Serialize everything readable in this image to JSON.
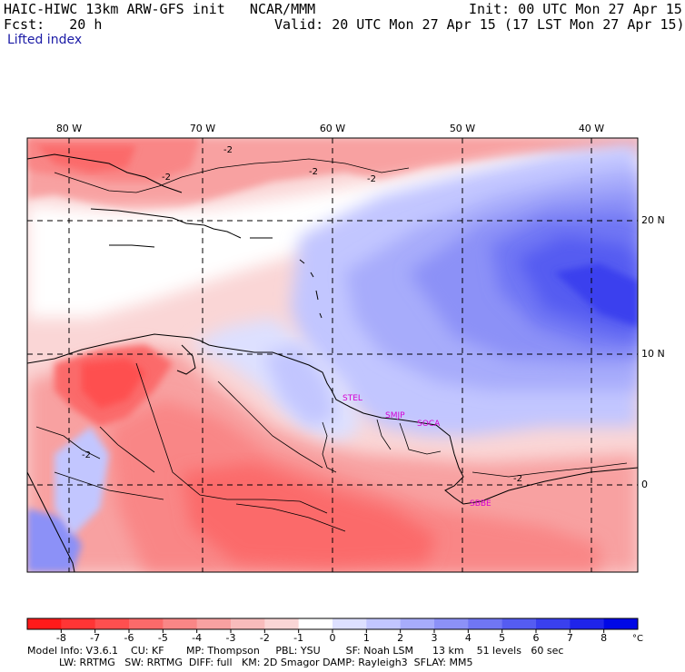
{
  "header": {
    "title_left": "HAIC-HIWC 13km ARW-GFS init   NCAR/MMM",
    "init": "Init: 00 UTC Mon 27 Apr 15",
    "fcst": "Fcst:   20 h",
    "valid": "Valid: 20 UTC Mon 27 Apr 15 (17 LST Mon 27 Apr 15)",
    "field": "Lifted index"
  },
  "map": {
    "lon_labels": [
      "80 W",
      "70 W",
      "60 W",
      "50 W",
      "40 W"
    ],
    "lat_labels": [
      "20 N",
      "10 N",
      "0"
    ],
    "contour_label": "-2",
    "stations": [
      "STEL",
      "SMJP",
      "SOCA",
      "SBBE"
    ]
  },
  "colorbar": {
    "ticks": [
      "-8",
      "-7",
      "-6",
      "-5",
      "-4",
      "-3",
      "-2",
      "-1",
      "0",
      "1",
      "2",
      "3",
      "4",
      "5",
      "6",
      "7",
      "8"
    ],
    "unit": "°C",
    "colors": [
      "#ff1a1a",
      "#ff3535",
      "#fe4f4f",
      "#fb6a6a",
      "#f98686",
      "#f8a1a1",
      "#f8bcbc",
      "#fad6d6",
      "#ffffff",
      "#dde0ff",
      "#c2c6ff",
      "#a7acfb",
      "#8c91f7",
      "#7076f4",
      "#555cf1",
      "#3a40ee",
      "#1f24ea",
      "#0008e6"
    ]
  },
  "footer": {
    "line1": "Model Info: V3.6.1    CU: KF       MP: Thompson     PBL: YSU        SF: Noah LSM      13 km    51 levels   60 sec",
    "line2": "          LW: RRTMG   SW: RRTMG  DIFF: full   KM: 2D Smagor DAMP: Rayleigh3  SFLAY: MM5"
  }
}
